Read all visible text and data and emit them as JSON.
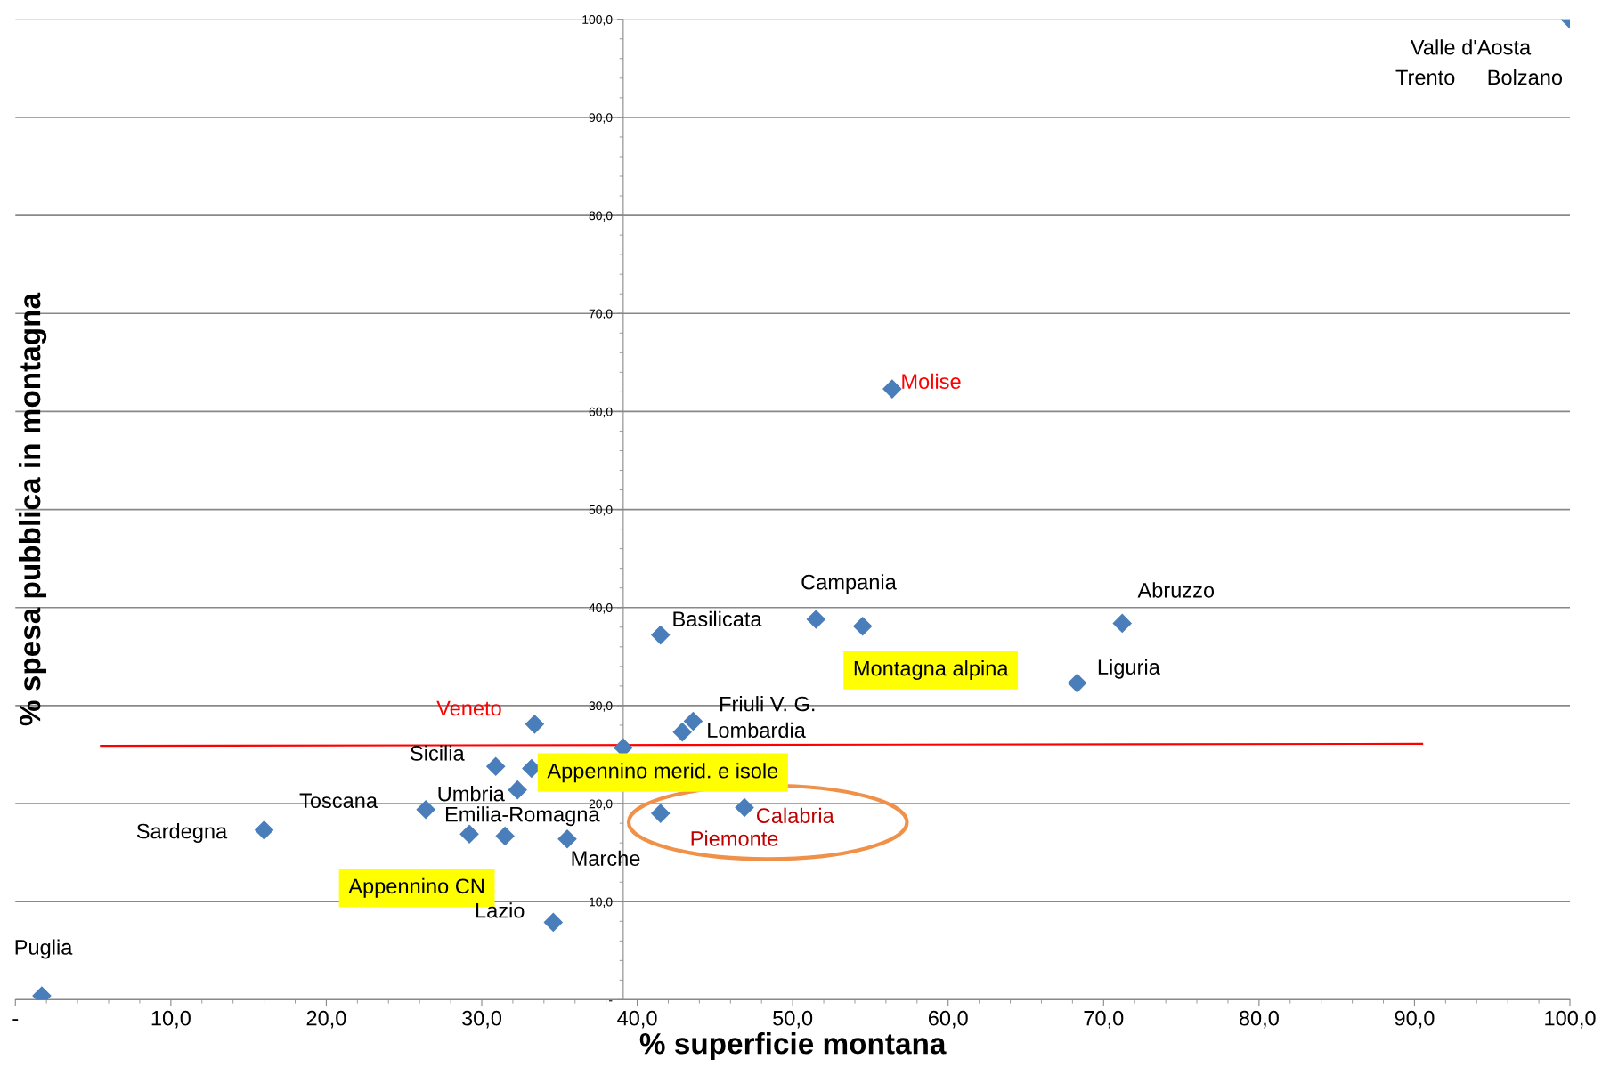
{
  "chart_data": {
    "type": "scatter",
    "xlabel": "% superficie montana",
    "ylabel": "% spesa pubblica in montagna",
    "xlim": [
      0,
      100
    ],
    "ylim": [
      0,
      100
    ],
    "xticks": [
      {
        "value": 0,
        "label": "-"
      },
      {
        "value": 10,
        "label": "10,0"
      },
      {
        "value": 20,
        "label": "20,0"
      },
      {
        "value": 30,
        "label": "30,0"
      },
      {
        "value": 40,
        "label": "40,0"
      },
      {
        "value": 50,
        "label": "50,0"
      },
      {
        "value": 60,
        "label": "60,0"
      },
      {
        "value": 70,
        "label": "70,0"
      },
      {
        "value": 80,
        "label": "80,0"
      },
      {
        "value": 90,
        "label": "90,0"
      },
      {
        "value": 100,
        "label": "100,0"
      }
    ],
    "yticks": [
      {
        "value": 0,
        "label": "-"
      },
      {
        "value": 10,
        "label": "10,0"
      },
      {
        "value": 20,
        "label": "20,0"
      },
      {
        "value": 30,
        "label": "30,0"
      },
      {
        "value": 40,
        "label": "40,0"
      },
      {
        "value": 50,
        "label": "50,0"
      },
      {
        "value": 60,
        "label": "60,0"
      },
      {
        "value": 70,
        "label": "70,0"
      },
      {
        "value": 80,
        "label": "80,0"
      },
      {
        "value": 90,
        "label": "90,0"
      },
      {
        "value": 100,
        "label": "100,0"
      }
    ],
    "grid": "y",
    "series": [
      {
        "marker": "diamond",
        "color": "#4a7ebb",
        "x": [
          100,
          56.4,
          51.5,
          54.5,
          41.5,
          71.2,
          68.3,
          33.4,
          43.6,
          42.9,
          39.1,
          30.9,
          33.2,
          32.3,
          26.4,
          16.0,
          29.2,
          31.5,
          35.5,
          41.5,
          46.9,
          34.6,
          1.7
        ],
        "values": [
          100,
          62.3,
          38.8,
          38.1,
          37.2,
          38.4,
          32.3,
          28.1,
          28.4,
          27.3,
          25.7,
          23.8,
          23.6,
          21.4,
          19.4,
          17.3,
          16.9,
          16.7,
          16.4,
          19.0,
          19.6,
          7.9,
          0.4
        ]
      },
      {
        "type": "line",
        "color": "#ff0000",
        "x": [
          5.5,
          90.5
        ],
        "values": [
          25.9,
          26.1
        ]
      }
    ],
    "annotations": [
      {
        "text": "Valle d'Aosta",
        "x": 100,
        "y": 100
      },
      "Trento",
      "Bolzano",
      {
        "text": "Molise",
        "x": 56.4,
        "y": 62.3
      },
      {
        "text": "Campania",
        "x": 51.5,
        "y": 38.8
      },
      {
        "text": "Montagna alpina",
        "x": 54.5,
        "y": 38.1
      },
      {
        "text": "Basilicata",
        "x": 41.5,
        "y": 37.2
      },
      {
        "text": "Abruzzo",
        "x": 71.2,
        "y": 38.4
      },
      {
        "text": "Liguria",
        "x": 68.3,
        "y": 32.3
      },
      {
        "text": "Veneto",
        "x": 33.4,
        "y": 28.1
      },
      {
        "text": "Friuli V. G.",
        "x": 43.6,
        "y": 28.4
      },
      {
        "text": "Lombardia",
        "x": 42.9,
        "y": 27.3
      },
      {
        "text": "Sicilia",
        "x": 30.9,
        "y": 23.8
      },
      {
        "text": "Appennino merid. e isole",
        "x": 33.2,
        "y": 23.6
      },
      {
        "text": "Umbria",
        "x": 32.3,
        "y": 21.4
      },
      {
        "text": "Toscana",
        "x": 26.4,
        "y": 19.4
      },
      {
        "text": "Sardegna",
        "x": 16.0,
        "y": 17.3
      },
      {
        "text": "Appennino CN",
        "x": 29.2,
        "y": 16.9
      },
      {
        "text": "Emilia-Romagna",
        "x": 31.5,
        "y": 16.7
      },
      {
        "text": "Marche",
        "x": 35.5,
        "y": 16.4
      },
      {
        "text": "Piemonte",
        "x": 41.5,
        "y": 19.0
      },
      {
        "text": "Calabria",
        "x": 46.9,
        "y": 19.6
      },
      {
        "text": "Lazio",
        "x": 34.6,
        "y": 7.9
      },
      {
        "text": "Puglia",
        "x": 1.7,
        "y": 0.4
      }
    ]
  }
}
